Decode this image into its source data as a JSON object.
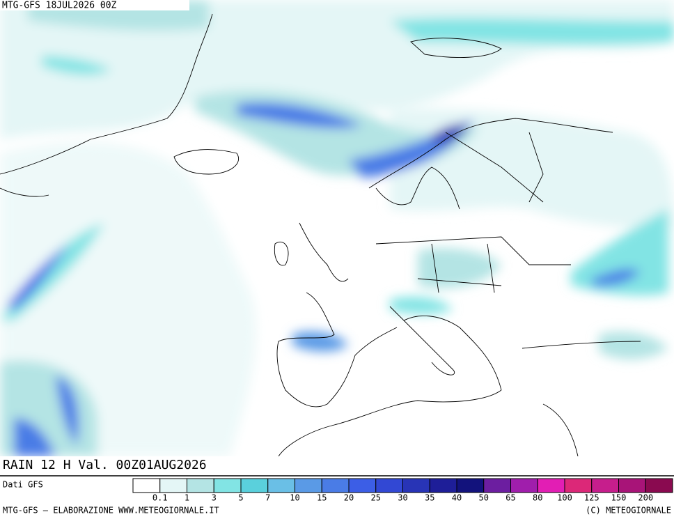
{
  "header": {
    "run": "MTG-GFS 18JUL2026 00Z"
  },
  "field": {
    "title": "RAIN 12 H Val. 00Z01AUG2026"
  },
  "source": "Dati GFS",
  "legend": {
    "colors": [
      "#ffffff",
      "#e4f6f6",
      "#b4e4e4",
      "#82e4e4",
      "#5ad0dc",
      "#6abfe6",
      "#5a9ae6",
      "#4a7ce6",
      "#3c5ee6",
      "#3248d4",
      "#2834b6",
      "#1e1e98",
      "#12127c",
      "#6c1ea0",
      "#a01eac",
      "#e21eb4",
      "#dc2878",
      "#c61e8c",
      "#a81478",
      "#8a0a50"
    ],
    "labels": [
      0.1,
      1,
      3,
      5,
      7,
      10,
      15,
      20,
      25,
      30,
      35,
      40,
      50,
      65,
      80,
      100,
      125,
      150,
      200
    ]
  },
  "footer": {
    "left": "MTG-GFS — ELABORAZIONE WWW.METEOGIORNALE.IT",
    "right": "(C) METEOGIORNALE"
  }
}
